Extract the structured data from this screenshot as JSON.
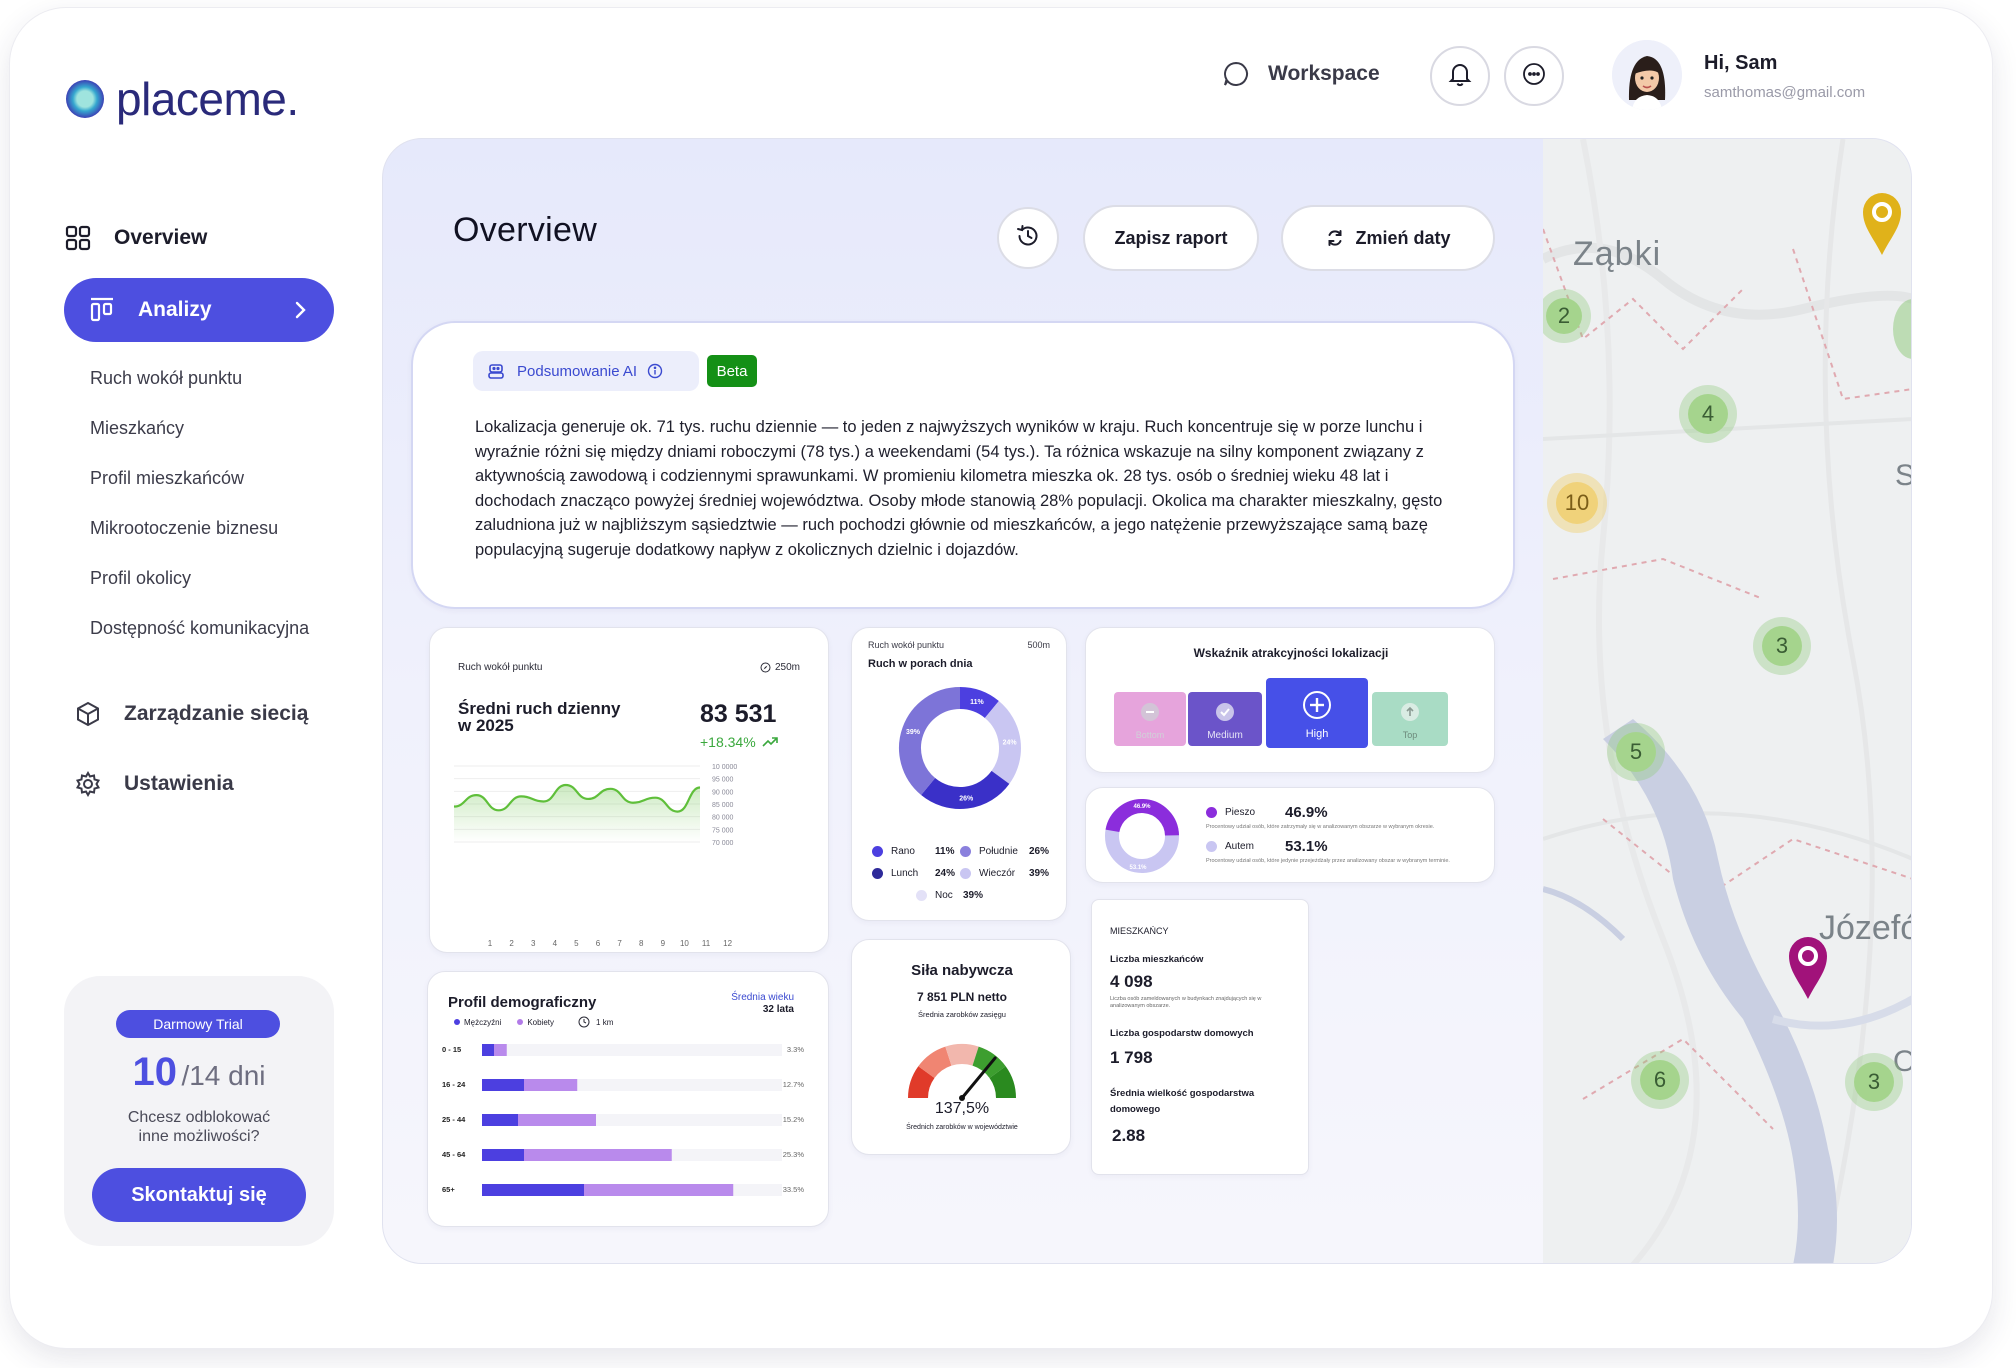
{
  "brand": {
    "name": "placeme."
  },
  "nav": {
    "overview": "Overview",
    "analizy": "Analizy",
    "sub_items": [
      "Ruch wokół punktu",
      "Mieszkańcy",
      "Profil mieszkańców",
      "Mikrootoczenie biznesu",
      "Profil okolicy",
      "Dostępność komunikacyjna"
    ],
    "network": "Zarządzanie siecią",
    "settings": "Ustawienia"
  },
  "trial": {
    "badge": "Darmowy Trial",
    "days_left": "10",
    "days_total": "/14 dni",
    "question_1": "Chcesz odblokować",
    "question_2": "inne możliwości?",
    "button": "Skontaktuj się"
  },
  "header": {
    "workspace": "Workspace",
    "greeting": "Hi, Sam",
    "email": "samthomas@gmail.com"
  },
  "page": {
    "title": "Overview",
    "save_report": "Zapisz raport",
    "change_dates": "Zmień daty"
  },
  "ai_summary": {
    "label": "Podsumowanie AI",
    "badge": "Beta",
    "text": "Lokalizacja generuje ok. 71 tys. ruchu dziennie — to jeden z najwyższych wyników w kraju. Ruch koncentruje się w porze lunchu i wyraźnie różni się między dniami roboczymi (78 tys.) a weekendami (54 tys.). Ta różnica wskazuje na silny komponent związany z aktywnością zawodową i codziennymi sprawunkami. W promieniu kilometra mieszka ok. 28 tys. osób o średniej wieku 48 lat i dochodach znacząco powyżej średniej województwa. Osoby młode stanowią 28% populacji. Okolica ma charakter mieszkalny, gęsto zaludniona już w najbliższym sąsiedztwie — ruch pochodzi głównie od mieszkańców, a jego natężenie przewyższające samą bazę populacyjną sugeruje dodatkowy napływ z okolicznych dzielnic i dojazdów."
  },
  "traffic_card": {
    "label": "Ruch wokół punktu",
    "radius": "250m",
    "title_1": "Średni ruch dzienny",
    "title_2": "w 2025",
    "value": "83 531",
    "change": "+18.34%",
    "y_ticks": [
      "10 0000",
      "95 000",
      "90 000",
      "85 000",
      "80 000",
      "75 000",
      "70 000"
    ],
    "x_ticks": [
      "1",
      "2",
      "3",
      "4",
      "5",
      "6",
      "7",
      "8",
      "9",
      "10",
      "11",
      "12"
    ]
  },
  "chart_data": [
    {
      "type": "line",
      "title": "Średni ruch dzienny w 2025",
      "x": [
        1,
        2,
        3,
        4,
        5,
        6,
        7,
        8,
        9,
        10,
        11,
        12
      ],
      "values": [
        84000,
        88500,
        82500,
        88000,
        86000,
        92500,
        87000,
        91000,
        85500,
        87500,
        82000,
        91500
      ],
      "ylim": [
        70000,
        100000
      ]
    },
    {
      "type": "pie",
      "title": "Ruch w porach dnia",
      "categories": [
        "Rano",
        "Południe",
        "Lunch",
        "Wieczór",
        "Noc"
      ],
      "values": [
        11,
        26,
        24,
        39,
        39
      ]
    },
    {
      "type": "bar",
      "title": "Profil demograficzny",
      "categories": [
        "0 - 15",
        "16 - 24",
        "25 - 44",
        "45 - 64",
        "65+"
      ],
      "series": [
        {
          "name": "Mężczyźni",
          "values": [
            1.6,
            5.6,
            4.8,
            5.6,
            13.6
          ]
        },
        {
          "name": "Kobiety",
          "values": [
            1.7,
            7.1,
            10.4,
            19.7,
            19.9
          ]
        }
      ]
    }
  ],
  "dayparts_card": {
    "label": "Ruch wokół punktu",
    "radius": "500m",
    "title": "Ruch w porach dnia",
    "slice_labels": [
      "11%",
      "24%",
      "26%",
      "39%"
    ],
    "legend": [
      {
        "name": "Rano",
        "value": "11%",
        "color": "#4c3fe0"
      },
      {
        "name": "Południe",
        "value": "26%",
        "color": "#8a80dd"
      },
      {
        "name": "Lunch",
        "value": "24%",
        "color": "#2e2a9a"
      },
      {
        "name": "Wieczór",
        "value": "39%",
        "color": "#c9c6f2"
      },
      {
        "name": "Noc",
        "value": "39%",
        "color": "#e3e1f7"
      }
    ]
  },
  "attractiveness_card": {
    "title": "Wskaźnik atrakcyjności lokalizacji",
    "levels": [
      {
        "label": "Bottom",
        "color": "#e6a4dc"
      },
      {
        "label": "Medium",
        "color": "#6b54c9"
      },
      {
        "label": "High",
        "color": "#4650e8"
      },
      {
        "label": "Top",
        "color": "#a9dcc5"
      }
    ]
  },
  "mobility_card": {
    "walk_label": "Pieszo",
    "walk_value": "46.9%",
    "walk_desc": "Procentowy udział osób, które zatrzymały się w analizowanym obszarze w wybranym okresie.",
    "car_label": "Autem",
    "car_value": "53.1%",
    "car_desc": "Procentowy udział osób, które jedynie przejeżdżały przez analizowany obszar w wybranym terminie.",
    "donut_walk": "46.9%",
    "donut_car": "53.1%"
  },
  "demographics_card": {
    "title": "Profil demograficzny",
    "avg_age_label": "Średnia wieku",
    "avg_age_value": "32 lata",
    "legend_male": "Mężczyźni",
    "legend_female": "Kobiety",
    "radius": "1 km",
    "rows": [
      {
        "label": "0 - 15",
        "pct": "3.3%"
      },
      {
        "label": "16 - 24",
        "pct": "12.7%"
      },
      {
        "label": "25 - 44",
        "pct": "15.2%"
      },
      {
        "label": "45 - 64",
        "pct": "25.3%"
      },
      {
        "label": "65+",
        "pct": "33.5%"
      }
    ]
  },
  "purchasing_card": {
    "title": "Siła nabywcza",
    "value": "7 851 PLN netto",
    "sub": "Średnia zarobków zasięgu",
    "gauge_value": "137,5%",
    "gauge_sub": "Średnich zarobków w województwie",
    "gauge_level": 0.72
  },
  "residents_card": {
    "title": "MIESZKAŃCY",
    "residents_label": "Liczba mieszkańców",
    "residents_value": "4 098",
    "residents_desc": "Liczba osób zameldowanych w budynkach znajdujących się w analizowanym obszarze.",
    "households_label": "Liczba gospodarstw domowych",
    "households_value": "1 798",
    "avg_household_label_1": "Średnia wielkość gospodarstwa",
    "avg_household_label_2": "domowego",
    "avg_household_value": "2.88"
  },
  "map": {
    "labels": [
      "Ząbki",
      "Józefó",
      "S",
      "O"
    ],
    "clusters": [
      "2",
      "4",
      "10",
      "3",
      "5",
      "6",
      "3"
    ]
  }
}
